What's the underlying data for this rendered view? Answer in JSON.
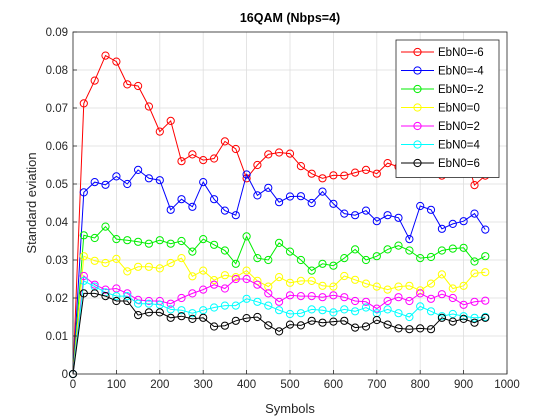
{
  "chart_data": {
    "type": "line",
    "title": "16QAM (Nbps=4)",
    "xlabel": "Symbols",
    "ylabel": "Standard eviation",
    "xlim": [
      0,
      1000
    ],
    "ylim": [
      0,
      0.09
    ],
    "xticks": [
      "0",
      "100",
      "200",
      "300",
      "400",
      "500",
      "600",
      "700",
      "800",
      "900",
      "1000"
    ],
    "yticks": [
      "0",
      "0.01",
      "0.02",
      "0.03",
      "0.04",
      "0.05",
      "0.06",
      "0.07",
      "0.08",
      "0.09"
    ],
    "grid": true,
    "legend": "top-right",
    "x": [
      0,
      25,
      50,
      75,
      100,
      125,
      150,
      175,
      200,
      225,
      250,
      275,
      300,
      325,
      350,
      375,
      400,
      425,
      450,
      475,
      500,
      525,
      550,
      575,
      600,
      625,
      650,
      675,
      700,
      725,
      750,
      775,
      800,
      825,
      850,
      875,
      900,
      925,
      950
    ],
    "series": [
      {
        "name": "EbN0=-6",
        "color": "#ff0000",
        "values": [
          0,
          0.0712,
          0.0772,
          0.0838,
          0.0822,
          0.0762,
          0.0758,
          0.0704,
          0.0638,
          0.0666,
          0.056,
          0.0578,
          0.0563,
          0.0567,
          0.0612,
          0.0592,
          0.0515,
          0.055,
          0.0578,
          0.0583,
          0.058,
          0.0547,
          0.0527,
          0.0515,
          0.0523,
          0.0522,
          0.053,
          0.0537,
          0.0527,
          0.0555,
          0.0545,
          0.054,
          0.0533,
          0.0562,
          0.0522,
          0.0577,
          0.0593,
          0.0497,
          0.0522
        ]
      },
      {
        "name": "EbN0=-4",
        "color": "#0000ff",
        "values": [
          0,
          0.0478,
          0.0505,
          0.0498,
          0.052,
          0.05,
          0.0537,
          0.0515,
          0.051,
          0.0432,
          0.046,
          0.044,
          0.0505,
          0.046,
          0.043,
          0.0418,
          0.0525,
          0.047,
          0.049,
          0.0452,
          0.0467,
          0.0468,
          0.045,
          0.048,
          0.0448,
          0.0422,
          0.0418,
          0.043,
          0.0402,
          0.0418,
          0.0411,
          0.0355,
          0.0442,
          0.0432,
          0.0382,
          0.0395,
          0.0402,
          0.0422,
          0.038
        ]
      },
      {
        "name": "EbN0=-2",
        "color": "#00ee00",
        "values": [
          0,
          0.0365,
          0.0358,
          0.0388,
          0.0355,
          0.0352,
          0.0348,
          0.0343,
          0.0352,
          0.0343,
          0.035,
          0.0322,
          0.0355,
          0.034,
          0.0325,
          0.029,
          0.0362,
          0.0305,
          0.03,
          0.0345,
          0.0322,
          0.03,
          0.0272,
          0.029,
          0.0285,
          0.0305,
          0.0328,
          0.03,
          0.031,
          0.0328,
          0.0338,
          0.0325,
          0.0305,
          0.0308,
          0.0325,
          0.033,
          0.0332,
          0.0296,
          0.031
        ]
      },
      {
        "name": "EbN0=0",
        "color": "#ffff00",
        "values": [
          0,
          0.031,
          0.0298,
          0.0292,
          0.0303,
          0.027,
          0.0282,
          0.0282,
          0.0278,
          0.0292,
          0.0305,
          0.0257,
          0.0272,
          0.0247,
          0.026,
          0.0255,
          0.0272,
          0.0245,
          0.023,
          0.0255,
          0.024,
          0.0245,
          0.0245,
          0.0232,
          0.023,
          0.0258,
          0.0248,
          0.0238,
          0.023,
          0.0222,
          0.023,
          0.0232,
          0.022,
          0.0238,
          0.0262,
          0.0225,
          0.0232,
          0.0265,
          0.0268
        ]
      },
      {
        "name": "EbN0=2",
        "color": "#ff00ff",
        "values": [
          0,
          0.0258,
          0.0235,
          0.0222,
          0.0225,
          0.0212,
          0.0195,
          0.0192,
          0.0192,
          0.0185,
          0.02,
          0.0212,
          0.0222,
          0.0235,
          0.0225,
          0.025,
          0.025,
          0.0235,
          0.0212,
          0.019,
          0.0207,
          0.0205,
          0.0205,
          0.0202,
          0.0207,
          0.0202,
          0.0192,
          0.019,
          0.0172,
          0.0192,
          0.0202,
          0.0192,
          0.0212,
          0.0198,
          0.021,
          0.02,
          0.0182,
          0.019,
          0.0193
        ]
      },
      {
        "name": "EbN0=4",
        "color": "#00ffff",
        "values": [
          0,
          0.0245,
          0.023,
          0.0215,
          0.0205,
          0.0205,
          0.0185,
          0.0185,
          0.0182,
          0.017,
          0.0168,
          0.016,
          0.0168,
          0.0175,
          0.018,
          0.018,
          0.0198,
          0.019,
          0.018,
          0.0168,
          0.0158,
          0.016,
          0.017,
          0.0168,
          0.0162,
          0.017,
          0.0165,
          0.0175,
          0.016,
          0.017,
          0.016,
          0.015,
          0.0178,
          0.0165,
          0.0152,
          0.0158,
          0.0152,
          0.0148,
          0.015
        ]
      },
      {
        "name": "EbN0=6",
        "color": "#000000",
        "values": [
          0,
          0.0212,
          0.0212,
          0.0205,
          0.0192,
          0.0192,
          0.0155,
          0.0162,
          0.0162,
          0.0148,
          0.0152,
          0.0145,
          0.0148,
          0.0125,
          0.0127,
          0.014,
          0.0147,
          0.015,
          0.0128,
          0.0112,
          0.013,
          0.0128,
          0.014,
          0.0135,
          0.0138,
          0.014,
          0.0122,
          0.0125,
          0.0142,
          0.013,
          0.012,
          0.0118,
          0.012,
          0.0118,
          0.0148,
          0.0138,
          0.0145,
          0.0135,
          0.0148
        ]
      }
    ]
  }
}
